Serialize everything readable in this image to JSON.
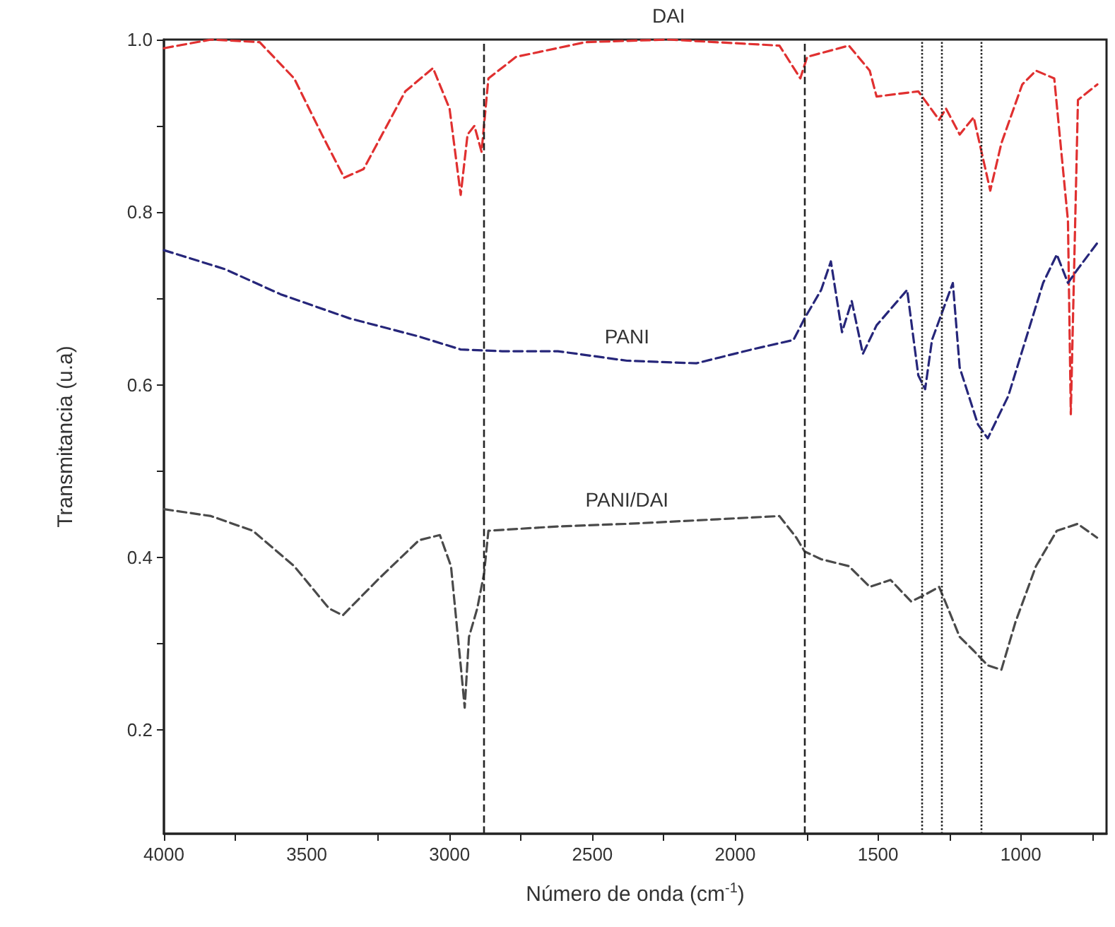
{
  "chart_data": {
    "type": "line",
    "xlabel": "Número de onda (cm$^{-1}$)",
    "ylabel": "Transmitancia (u.a)",
    "xlim": [
      4000,
      700
    ],
    "ylim": [
      0.08,
      1.0
    ],
    "xticks": [
      4000,
      {
        "value": 3750,
        "label": null
      },
      3500,
      {
        "value": 3250,
        "label": null
      },
      3000,
      {
        "value": 2750,
        "label": null
      },
      2500,
      {
        "value": 2250,
        "label": null
      },
      2000,
      {
        "value": 1750,
        "label": null
      },
      1500,
      {
        "value": 1250,
        "label": null
      },
      1000,
      {
        "value": 750,
        "label": null
      }
    ],
    "yticks": [
      0.2,
      {
        "value": 0.3,
        "label": null
      },
      0.4,
      {
        "value": 0.5,
        "label": null
      },
      0.6,
      {
        "value": 0.7,
        "label": null
      },
      {
        "value": 0.8,
        "label": "0.8"
      },
      {
        "value": 0.9,
        "label": null
      },
      {
        "value": 1.0,
        "label": "1.0"
      }
    ],
    "grid": false,
    "legend": false,
    "marker": "none",
    "line_style": "dashed",
    "series": [
      {
        "name": "DAI",
        "color": "#e03030",
        "x": [
          4000,
          3835,
          3665,
          3544,
          3447,
          3369,
          3301,
          3155,
          3058,
          3000,
          2961,
          2937,
          2913,
          2888,
          2864,
          2767,
          2524,
          2233,
          1845,
          1772,
          1748,
          1602,
          1529,
          1505,
          1359,
          1286,
          1262,
          1214,
          1165,
          1107,
          1068,
          995,
          947,
          883,
          835,
          825,
          800,
          732
        ],
        "values": [
          0.99,
          1.0,
          0.997,
          0.955,
          0.89,
          0.84,
          0.85,
          0.94,
          0.967,
          0.92,
          0.82,
          0.89,
          0.9,
          0.87,
          0.955,
          0.98,
          0.997,
          1.0,
          0.993,
          0.955,
          0.98,
          0.993,
          0.964,
          0.934,
          0.94,
          0.907,
          0.92,
          0.89,
          0.91,
          0.825,
          0.88,
          0.948,
          0.964,
          0.955,
          0.79,
          0.566,
          0.93,
          0.948
        ]
      },
      {
        "name": "PANI",
        "color": "#26267a",
        "x": [
          4000,
          3786,
          3592,
          3350,
          3107,
          2961,
          2816,
          2621,
          2379,
          2136,
          1942,
          1796,
          1757,
          1699,
          1665,
          1626,
          1592,
          1553,
          1505,
          1398,
          1359,
          1335,
          1311,
          1238,
          1214,
          1150,
          1116,
          1044,
          922,
          874,
          835,
          801,
          733
        ],
        "values": [
          0.756,
          0.734,
          0.705,
          0.677,
          0.656,
          0.641,
          0.639,
          0.639,
          0.628,
          0.625,
          0.641,
          0.652,
          0.677,
          0.71,
          0.743,
          0.661,
          0.697,
          0.636,
          0.669,
          0.71,
          0.611,
          0.595,
          0.652,
          0.718,
          0.62,
          0.554,
          0.538,
          0.587,
          0.718,
          0.751,
          0.718,
          0.734,
          0.764
        ]
      },
      {
        "name": "PANI/DAI",
        "color": "#4a4a4a",
        "x": [
          4000,
          3835,
          3689,
          3544,
          3422,
          3374,
          3252,
          3107,
          3034,
          2995,
          2961,
          2947,
          2932,
          2903,
          2879,
          2864,
          2621,
          2379,
          2136,
          1845,
          1786,
          1757,
          1699,
          1602,
          1529,
          1456,
          1384,
          1335,
          1286,
          1214,
          1165,
          1116,
          1068,
          1019,
          947,
          874,
          801,
          733
        ],
        "values": [
          0.456,
          0.448,
          0.431,
          0.39,
          0.341,
          0.333,
          0.374,
          0.42,
          0.426,
          0.39,
          0.275,
          0.226,
          0.308,
          0.341,
          0.382,
          0.431,
          0.436,
          0.439,
          0.443,
          0.448,
          0.423,
          0.407,
          0.398,
          0.39,
          0.366,
          0.374,
          0.349,
          0.357,
          0.366,
          0.308,
          0.292,
          0.275,
          0.27,
          0.325,
          0.39,
          0.431,
          0.439,
          0.423
        ]
      }
    ],
    "ref_lines": [
      {
        "axis": "x",
        "value": 2880,
        "color": "#222222",
        "line_style": "dashed"
      },
      {
        "axis": "x",
        "value": 1760,
        "color": "#222222",
        "line_style": "dashed"
      },
      {
        "axis": "x",
        "value": 1345,
        "color": "#222222",
        "line_style": "dotted"
      },
      {
        "axis": "x",
        "value": 1280,
        "color": "#222222",
        "line_style": "dotted"
      },
      {
        "axis": "x",
        "value": 1140,
        "color": "#222222",
        "line_style": "dotted"
      }
    ]
  }
}
